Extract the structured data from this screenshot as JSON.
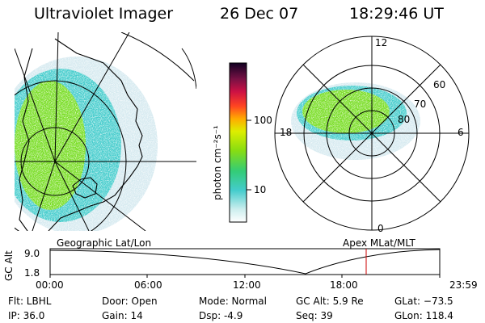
{
  "header": {
    "instrument": "Ultraviolet Imager",
    "date": "26 Dec 07",
    "time": "18:29:46 UT"
  },
  "geo_panel": {
    "label": "Geographic Lat/Lon"
  },
  "polar_panel": {
    "label": "Apex MLat/MLT",
    "mlt_labels": [
      "12",
      "18",
      "6",
      "0"
    ],
    "mlat_labels": [
      "60",
      "70",
      "80"
    ]
  },
  "colorbar": {
    "unit_label": "photon cm⁻²s⁻¹",
    "tick_labels": [
      "100",
      "10"
    ]
  },
  "altitude_plot": {
    "ylabel": "GC Alt",
    "yticks": [
      "9.0",
      "1.8"
    ],
    "xticks": [
      "00:00",
      "06:00",
      "12:00",
      "18:00",
      "23:59"
    ],
    "current_time_marker": "18:29:46",
    "marker_color": "#cc0000"
  },
  "info": {
    "filter": "Flt: LBHL",
    "ip": "IP: 36.0",
    "door": "Door: Open",
    "gain": "Gain: 14",
    "mode": "Mode: Normal",
    "dsp": "Dsp:    -4.9",
    "gc_alt": "GC Alt: 5.9 Re",
    "seq": "Seq: 39",
    "glat": "GLat: −73.5",
    "glon": "GLon: 118.4"
  },
  "colors": {
    "aurora_bright": "#66dd22",
    "aurora_mid": "#33cccc",
    "aurora_faint": "#cce8ee"
  }
}
